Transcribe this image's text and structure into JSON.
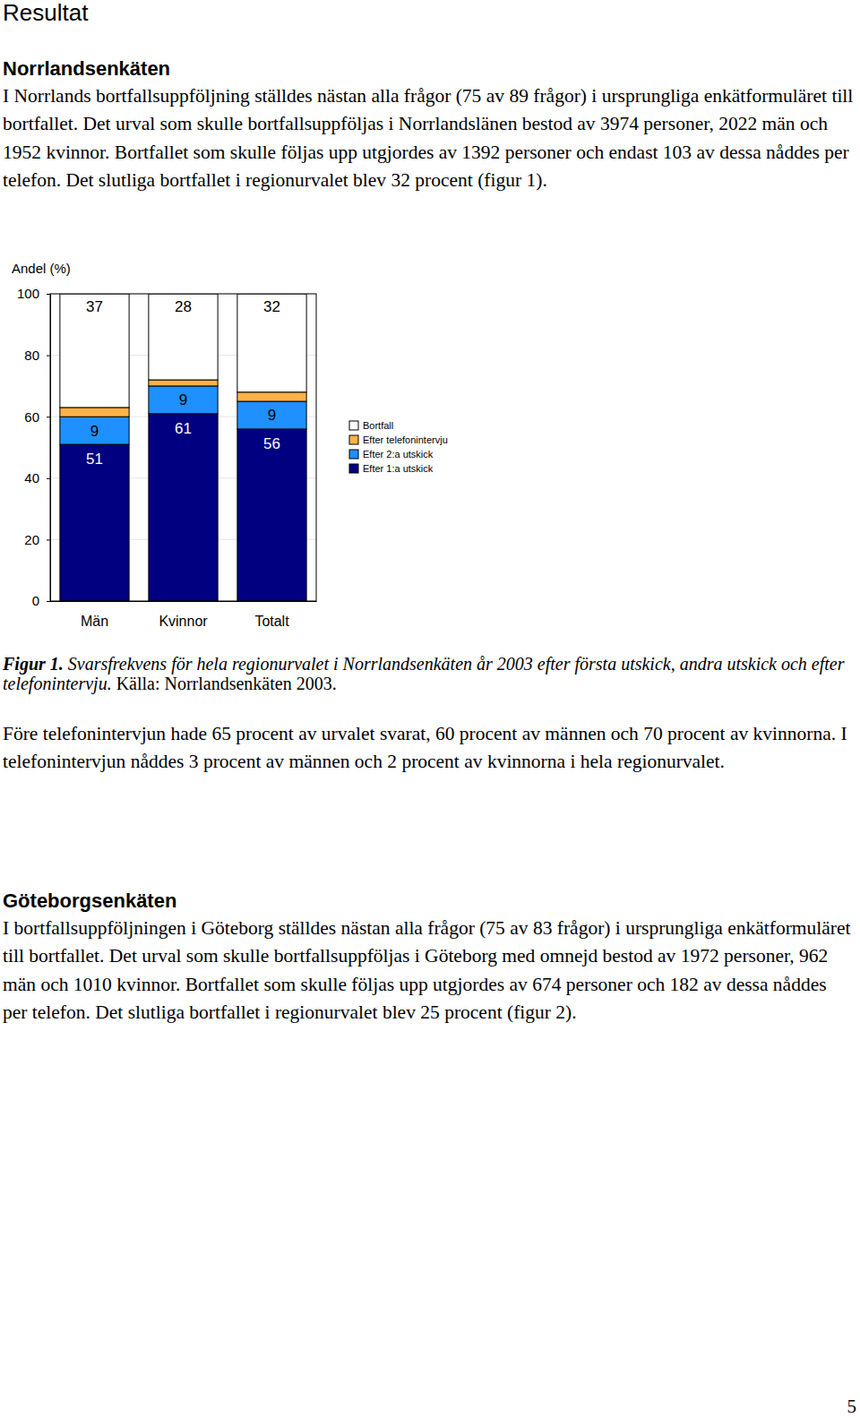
{
  "title": "Resultat",
  "sections": [
    {
      "heading": "Norrlandsenkäten",
      "paragraphs": [
        "I Norrlands bortfallsuppföljning ställdes nästan alla frågor (75 av 89 frågor) i ursprungliga enkätformuläret till bortfallet. Det urval som skulle bortfallsuppföljas i Norrlandslänen bestod av 3974 personer, 2022 män och 1952 kvinnor. Bortfallet som skulle följas upp utgjordes av 1392 personer och endast 103 av dessa nåddes per telefon. Det slutliga bortfallet i regionurvalet blev 32 procent (figur 1).",
        "Före telefonintervjun hade 65 procent av urvalet svarat, 60 procent av männen och 70 procent av kvinnorna. I telefonintervjun nåddes 3 procent av männen och 2 procent av kvinnorna i hela regionurvalet."
      ]
    },
    {
      "heading": "Göteborgsenkäten",
      "paragraphs": [
        "I bortfallsuppföljningen i Göteborg ställdes nästan alla frågor (75 av 83 frågor) i ursprungliga enkätformuläret till bortfallet. Det urval som skulle bortfallsuppföljas i Göteborg med omnejd bestod av 1972 personer, 962 män och 1010 kvinnor. Bortfallet som skulle följas upp utgjordes av 674 personer och 182 av dessa nåddes per telefon. Det slutliga bortfallet i regionurvalet blev 25 procent (figur 2)."
      ]
    }
  ],
  "chart_data": {
    "type": "bar",
    "stacked": true,
    "y_label": "Andel (%)",
    "categories": [
      "Män",
      "Kvinnor",
      "Totalt"
    ],
    "series": [
      {
        "name": "Efter 1:a utskick",
        "color": "#000080",
        "values": [
          51,
          61,
          56
        ],
        "data_labels": true
      },
      {
        "name": "Efter 2:a utskick",
        "color": "#1e90ff",
        "values": [
          9,
          9,
          9
        ],
        "data_labels": true
      },
      {
        "name": "Efter telefonintervju",
        "color": "#ffb347",
        "values": [
          3,
          2,
          3
        ],
        "data_labels": false
      },
      {
        "name": "Bortfall",
        "color": "#ffffff",
        "values": [
          37,
          28,
          32
        ],
        "data_labels": true
      }
    ],
    "ylim": [
      0,
      100
    ],
    "yticks": [
      0,
      20,
      40,
      60,
      80,
      100
    ],
    "grid": true,
    "legend": "right"
  },
  "caption": {
    "label": "Figur 1.",
    "text": "Svarsfrekvens för hela regionurvalet i Norrlandsenkäten år 2003 efter första utskick, andra utskick och efter telefonintervju.",
    "source": "Källa: Norrlandsenkäten 2003."
  },
  "page_number": "5"
}
